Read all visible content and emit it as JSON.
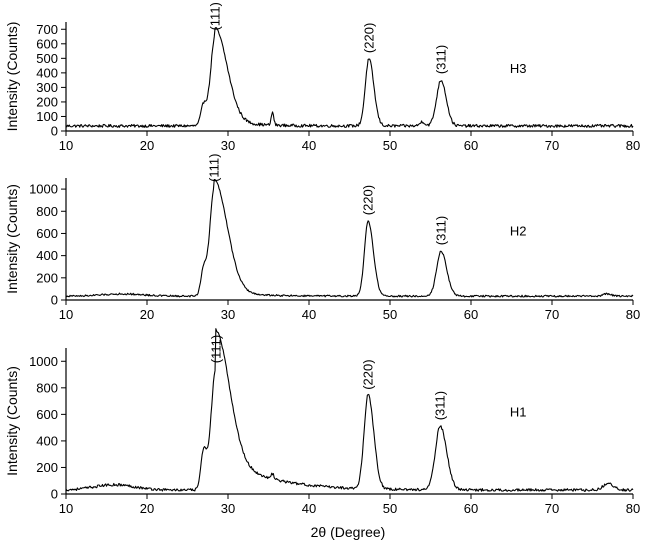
{
  "chart_data": [
    {
      "type": "line",
      "panel_label": "H3",
      "ylabel": "Intensity (Counts)",
      "xlim": [
        10,
        80
      ],
      "ylim": [
        0,
        750
      ],
      "yticks": [
        0,
        100,
        200,
        300,
        400,
        500,
        600,
        700
      ],
      "xticks": [
        10,
        20,
        30,
        40,
        50,
        60,
        70,
        80
      ],
      "baseline": 35,
      "noise": 10,
      "minor_peaks": [
        [
          35.5,
          90,
          0.15
        ],
        [
          54.0,
          30,
          0.3
        ]
      ],
      "peaks": [
        {
          "label": "(111)",
          "x": 28.4,
          "y": 650,
          "width_left": 0.55,
          "width_right": 1.5,
          "shoulder": [
            27.0,
            270
          ],
          "tail": 60
        },
        {
          "label": "(220)",
          "x": 47.4,
          "y": 495,
          "width_left": 0.45,
          "width_right": 0.6
        },
        {
          "label": "(311)",
          "x": 56.3,
          "y": 350,
          "width_left": 0.55,
          "width_right": 0.65
        }
      ]
    },
    {
      "type": "line",
      "panel_label": "H2",
      "ylabel": "Intensity (Counts)",
      "xlim": [
        10,
        80
      ],
      "ylim": [
        0,
        1100
      ],
      "yticks": [
        0,
        200,
        400,
        600,
        800,
        1000
      ],
      "xticks": [
        10,
        20,
        30,
        40,
        50,
        60,
        70,
        80
      ],
      "baseline": 35,
      "noise": 8,
      "minor_peaks": [
        [
          17.0,
          20,
          2.5
        ],
        [
          76.8,
          20,
          0.5
        ]
      ],
      "peaks": [
        {
          "label": "(111)",
          "x": 28.3,
          "y": 1010,
          "width_left": 0.55,
          "width_right": 1.6,
          "shoulder": [
            27.0,
            420
          ],
          "tail": 80
        },
        {
          "label": "(220)",
          "x": 47.3,
          "y": 710,
          "width_left": 0.45,
          "width_right": 0.65
        },
        {
          "label": "(311)",
          "x": 56.3,
          "y": 440,
          "width_left": 0.55,
          "width_right": 0.7
        }
      ]
    },
    {
      "type": "line",
      "panel_label": "H1",
      "ylabel": "Intensity (Counts)",
      "xlabel": "2θ (Degree)",
      "xlim": [
        10,
        80
      ],
      "ylim": [
        0,
        1100
      ],
      "yticks": [
        0,
        200,
        400,
        600,
        800,
        1000
      ],
      "xticks": [
        10,
        20,
        30,
        40,
        50,
        60,
        70,
        80
      ],
      "baseline": 30,
      "noise": 10,
      "minor_peaks": [
        [
          16.0,
          40,
          2.5
        ],
        [
          35.5,
          40,
          0.15
        ],
        [
          77.0,
          45,
          0.7
        ]
      ],
      "peaks": [
        {
          "label": "(111)",
          "x": 28.5,
          "y": 940,
          "width_left": 0.6,
          "width_right": 1.7,
          "shoulder": [
            27.0,
            500
          ],
          "tail": 300,
          "tail_decay": 5.5
        },
        {
          "label": "(220)",
          "x": 47.3,
          "y": 740,
          "width_left": 0.5,
          "width_right": 0.7
        },
        {
          "label": "(311)",
          "x": 56.2,
          "y": 510,
          "width_left": 0.6,
          "width_right": 0.8
        }
      ]
    }
  ]
}
